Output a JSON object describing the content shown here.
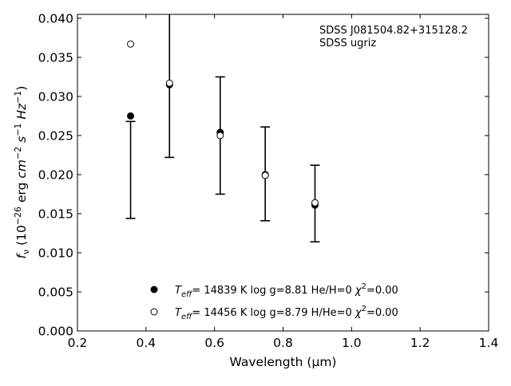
{
  "chart_data": {
    "type": "scatter",
    "title": "",
    "xlabel": "Wavelength (μm)",
    "ylabel_parts": [
      "f",
      "ν",
      " (10",
      "−26",
      " erg ",
      "cm",
      "−2",
      " s",
      "−1",
      " Hz",
      "−1",
      ")"
    ],
    "xlim": [
      0.2,
      1.4
    ],
    "ylim": [
      0.0,
      0.0405
    ],
    "x_ticks": [
      "0.2",
      "0.4",
      "0.6",
      "0.8",
      "1.0",
      "1.2",
      "1.4"
    ],
    "x_tick_values": [
      0.2,
      0.4,
      0.6,
      0.8,
      1.0,
      1.2,
      1.4
    ],
    "y_ticks": [
      "0.000",
      "0.005",
      "0.010",
      "0.015",
      "0.020",
      "0.025",
      "0.030",
      "0.035",
      "0.040"
    ],
    "y_tick_values": [
      0.0,
      0.005,
      0.01,
      0.015,
      0.02,
      0.025,
      0.03,
      0.035,
      0.04
    ],
    "grid": false,
    "annotations": [
      "SDSS J081504.82+315128.2",
      "SDSS ugriz"
    ],
    "observed": {
      "x": [
        0.3551,
        0.4686,
        0.6166,
        0.748,
        0.8932
      ],
      "y": [
        0.0206,
        0.0341,
        0.025,
        0.0201,
        0.0163
      ],
      "yerr": [
        0.0062,
        0.0119,
        0.0075,
        0.006,
        0.0049
      ]
    },
    "series": [
      {
        "marker": "filled-circle",
        "x": [
          0.3551,
          0.4686,
          0.6166,
          0.748,
          0.8932
        ],
        "y": [
          0.0275,
          0.0315,
          0.0254,
          0.02,
          0.0161
        ]
      },
      {
        "marker": "open-circle",
        "x": [
          0.3551,
          0.4686,
          0.6166,
          0.748,
          0.8932
        ],
        "y": [
          0.0367,
          0.0317,
          0.025,
          0.0199,
          0.0164
        ]
      }
    ],
    "legend": {
      "placement": "lower-center",
      "entries": [
        {
          "marker": "filled-circle",
          "T": "T",
          "sub": "eff",
          "rest": "= 14839 K  log g=8.81  He/H=0  ",
          "chi": "χ",
          "sup": "2",
          "val": "=0.00"
        },
        {
          "marker": "open-circle",
          "T": "T",
          "sub": "eff",
          "rest": "= 14456 K  log g=8.79  H/He=0  ",
          "chi": "χ",
          "sup": "2",
          "val": "=0.00"
        }
      ]
    }
  }
}
